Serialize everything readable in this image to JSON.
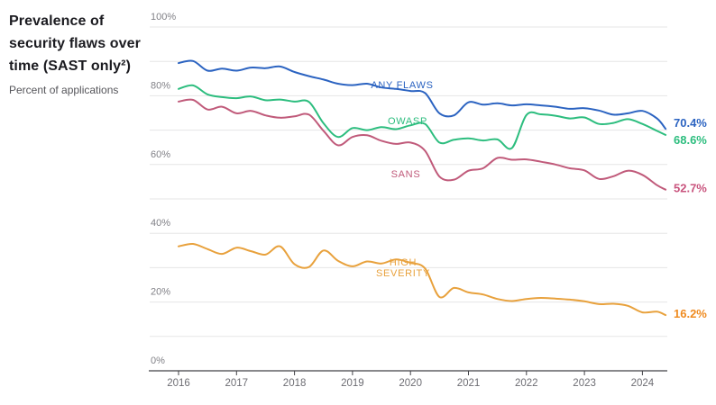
{
  "header": {
    "title": "Prevalence of security flaws over time (SAST only²)",
    "subtitle": "Percent of applications"
  },
  "chart_data": {
    "type": "line",
    "title": "Prevalence of security flaws over time (SAST only²)",
    "ylabel": "Percent of applications",
    "grid": "horizontal, every 10%",
    "legend_position": "labels inline next to each line, end values at right",
    "x_axis": {
      "tick_labels": [
        "2016",
        "2017",
        "2018",
        "2019",
        "2020",
        "2021",
        "2022",
        "2023",
        "2024"
      ]
    },
    "y_axis": {
      "min": 0,
      "max": 100,
      "tick_labels": [
        "0%",
        "20%",
        "40%",
        "60%",
        "80%",
        "100%"
      ],
      "unit": "%"
    },
    "x": [
      2016.0,
      2016.25,
      2016.5,
      2016.75,
      2017.0,
      2017.25,
      2017.5,
      2017.75,
      2018.0,
      2018.25,
      2018.5,
      2018.75,
      2019.0,
      2019.25,
      2019.5,
      2019.75,
      2020.0,
      2020.25,
      2020.5,
      2020.75,
      2021.0,
      2021.25,
      2021.5,
      2021.75,
      2022.0,
      2022.25,
      2022.5,
      2022.75,
      2023.0,
      2023.25,
      2023.5,
      2023.75,
      2024.0,
      2024.25,
      2024.4
    ],
    "series": [
      {
        "name": "ANY FLAWS",
        "label_lines": [
          "ANY FLAWS"
        ],
        "color": "#2b63c1",
        "end_label": "70.4%",
        "end_value": 70.4,
        "values": [
          89.5,
          90.1,
          87.3,
          87.9,
          87.3,
          88.2,
          88.0,
          88.5,
          86.9,
          85.7,
          84.7,
          83.5,
          83.1,
          83.5,
          82.4,
          82.0,
          81.4,
          80.8,
          74.9,
          74.3,
          78.1,
          77.4,
          77.8,
          77.2,
          77.5,
          77.2,
          76.8,
          76.2,
          76.4,
          75.7,
          74.5,
          74.9,
          75.6,
          73.4,
          70.4
        ]
      },
      {
        "name": "OWASP",
        "label_lines": [
          "OWASP"
        ],
        "color": "#2cbd7e",
        "end_label": "68.6%",
        "end_value": 68.6,
        "values": [
          82.0,
          83.0,
          80.4,
          79.6,
          79.3,
          79.8,
          78.7,
          78.9,
          78.3,
          78.2,
          72.0,
          68.0,
          70.6,
          70.0,
          70.9,
          70.3,
          71.4,
          71.8,
          66.4,
          67.2,
          67.6,
          67.0,
          67.3,
          64.8,
          74.4,
          74.6,
          74.2,
          73.4,
          73.7,
          71.8,
          72.1,
          73.2,
          71.8,
          69.8,
          68.6
        ]
      },
      {
        "name": "SANS",
        "label_lines": [
          "SANS"
        ],
        "color": "#c05a7a",
        "end_label": "52.7%",
        "end_value": 52.7,
        "values": [
          78.3,
          78.8,
          76.0,
          76.8,
          74.9,
          75.6,
          74.3,
          73.6,
          74.0,
          74.5,
          69.8,
          65.6,
          68.0,
          68.5,
          66.9,
          66.0,
          66.4,
          64.0,
          56.5,
          55.6,
          58.2,
          58.9,
          61.9,
          61.4,
          61.5,
          60.8,
          60.0,
          58.9,
          58.3,
          55.8,
          56.6,
          58.2,
          57.0,
          54.0,
          52.7
        ]
      },
      {
        "name": "HIGH SEVERITY",
        "label_lines": [
          "HIGH",
          "SEVERITY"
        ],
        "color": "#e8a13c",
        "end_label": "16.2%",
        "end_value": 16.2,
        "values": [
          36.2,
          36.9,
          35.4,
          34.0,
          35.8,
          34.8,
          33.8,
          36.2,
          31.0,
          30.2,
          35.0,
          32.0,
          30.4,
          31.8,
          31.2,
          32.4,
          31.4,
          29.8,
          21.5,
          24.1,
          22.8,
          22.2,
          20.9,
          20.3,
          20.9,
          21.2,
          21.0,
          20.7,
          20.2,
          19.4,
          19.5,
          18.9,
          17.0,
          17.2,
          16.2
        ]
      }
    ],
    "end_label_colors": [
      "#2b63c1",
      "#2cbd7e",
      "#c9547e",
      "#ef8b20"
    ]
  }
}
